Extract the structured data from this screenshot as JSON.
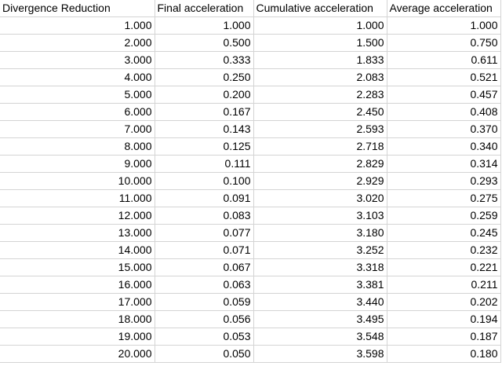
{
  "sheet": {
    "headers": [
      "Divergence Reduction",
      "Final acceleration",
      "Cumulative acceleration",
      "Average acceleration"
    ],
    "rows": [
      [
        "1.000",
        "1.000",
        "1.000",
        "1.000"
      ],
      [
        "2.000",
        "0.500",
        "1.500",
        "0.750"
      ],
      [
        "3.000",
        "0.333",
        "1.833",
        "0.611"
      ],
      [
        "4.000",
        "0.250",
        "2.083",
        "0.521"
      ],
      [
        "5.000",
        "0.200",
        "2.283",
        "0.457"
      ],
      [
        "6.000",
        "0.167",
        "2.450",
        "0.408"
      ],
      [
        "7.000",
        "0.143",
        "2.593",
        "0.370"
      ],
      [
        "8.000",
        "0.125",
        "2.718",
        "0.340"
      ],
      [
        "9.000",
        "0.111",
        "2.829",
        "0.314"
      ],
      [
        "10.000",
        "0.100",
        "2.929",
        "0.293"
      ],
      [
        "11.000",
        "0.091",
        "3.020",
        "0.275"
      ],
      [
        "12.000",
        "0.083",
        "3.103",
        "0.259"
      ],
      [
        "13.000",
        "0.077",
        "3.180",
        "0.245"
      ],
      [
        "14.000",
        "0.071",
        "3.252",
        "0.232"
      ],
      [
        "15.000",
        "0.067",
        "3.318",
        "0.221"
      ],
      [
        "16.000",
        "0.063",
        "3.381",
        "0.211"
      ],
      [
        "17.000",
        "0.059",
        "3.440",
        "0.202"
      ],
      [
        "18.000",
        "0.056",
        "3.495",
        "0.194"
      ],
      [
        "19.000",
        "0.053",
        "3.548",
        "0.187"
      ],
      [
        "20.000",
        "0.050",
        "3.598",
        "0.180"
      ]
    ]
  }
}
